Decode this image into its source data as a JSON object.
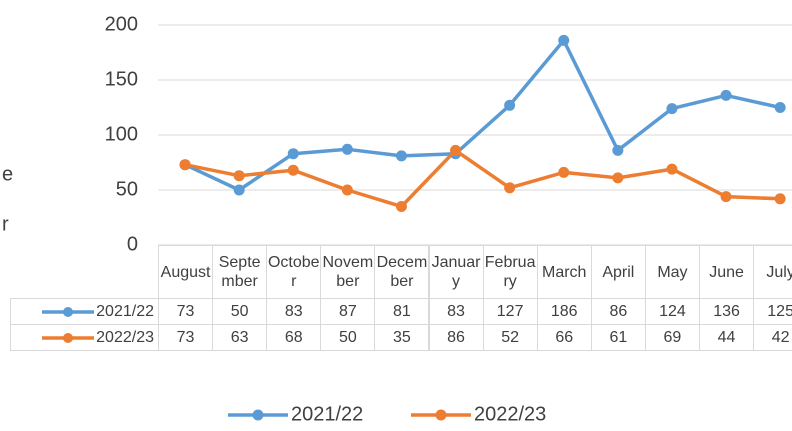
{
  "chart_data": {
    "type": "line",
    "categories": [
      "August",
      "September",
      "October",
      "November",
      "December",
      "January",
      "February",
      "March",
      "April",
      "May",
      "June",
      "July"
    ],
    "series": [
      {
        "name": "2021/22",
        "color": "#5b9bd5",
        "values": [
          73,
          50,
          83,
          87,
          81,
          83,
          127,
          186,
          86,
          124,
          136,
          125
        ]
      },
      {
        "name": "2022/23",
        "color": "#ed7d31",
        "values": [
          73,
          63,
          68,
          50,
          35,
          86,
          52,
          66,
          61,
          69,
          44,
          42
        ]
      }
    ],
    "ylim": [
      0,
      200
    ],
    "yticks": [
      0,
      50,
      100,
      150,
      200
    ],
    "grid": true,
    "legend": "bottom",
    "data_table": true,
    "axis_title_fragments": [
      "e",
      "r"
    ]
  }
}
